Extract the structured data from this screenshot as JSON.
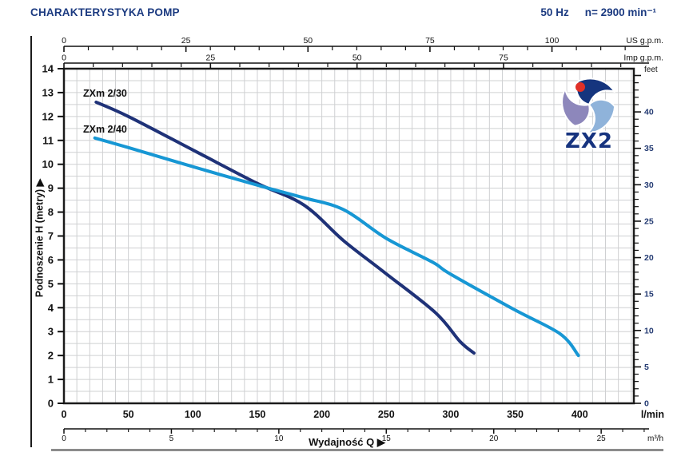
{
  "header": {
    "title": "CHARAKTERYSTYKA POMP",
    "frequency": "50 Hz",
    "speed": "n= 2900 min⁻¹"
  },
  "logo": {
    "text": "ZX2"
  },
  "chart_data": {
    "type": "line",
    "title": "",
    "xlabel": "Wydajność Q  ▶",
    "ylabel": "Podnoszenie H  (metry)  ▶",
    "grid": true,
    "x_axis_bottom": {
      "unit": "l/min",
      "ticks": [
        0,
        50,
        100,
        150,
        200,
        250,
        300,
        350,
        400
      ],
      "minor_step": 10,
      "range": [
        0,
        442
      ]
    },
    "x_axis_bottom_secondary": {
      "unit": "m³/h",
      "ticks": [
        0,
        5,
        10,
        15,
        20,
        25
      ],
      "minor_step": 1,
      "lmin_per_unit": 16.667
    },
    "x_axis_top_primary": {
      "unit": "US g.p.m.",
      "ticks": [
        0,
        25,
        50,
        75,
        100
      ],
      "minor_step": 5,
      "lmin_per_unit": 3.785
    },
    "x_axis_top_secondary": {
      "unit": "Imp g.p.m.",
      "ticks": [
        0,
        25,
        50,
        75
      ],
      "minor_step": 5,
      "lmin_per_unit": 4.546
    },
    "y_axis_left": {
      "unit": "metry",
      "ticks": [
        0,
        1,
        2,
        3,
        4,
        5,
        6,
        7,
        8,
        9,
        10,
        11,
        12,
        13,
        14
      ],
      "minor_grid_step": 0.5,
      "range": [
        0,
        14
      ]
    },
    "y_axis_right": {
      "unit": "feet",
      "ticks": [
        0,
        5,
        10,
        15,
        20,
        25,
        30,
        35,
        40
      ],
      "minor_step": 1,
      "m_per_unit": 0.3048
    },
    "series": [
      {
        "name": "ZXm 2/30",
        "color": "#1f3278",
        "points": [
          [
            25,
            12.6
          ],
          [
            50,
            12.0
          ],
          [
            100,
            10.6
          ],
          [
            150,
            9.2
          ],
          [
            186,
            8.3
          ],
          [
            217,
            6.8
          ],
          [
            248,
            5.5
          ],
          [
            288,
            3.8
          ],
          [
            307,
            2.6
          ],
          [
            318,
            2.1
          ]
        ]
      },
      {
        "name": "ZXm 2/40",
        "color": "#1797d4",
        "points": [
          [
            24,
            11.1
          ],
          [
            50,
            10.7
          ],
          [
            100,
            9.9
          ],
          [
            155,
            9.05
          ],
          [
            186,
            8.6
          ],
          [
            217,
            8.1
          ],
          [
            250,
            6.9
          ],
          [
            286,
            5.9
          ],
          [
            300,
            5.4
          ],
          [
            350,
            3.9
          ],
          [
            385,
            2.9
          ],
          [
            399,
            2.0
          ]
        ]
      }
    ]
  },
  "colors": {
    "header_navy": "#1b3a80",
    "grid": "#cfd0d2",
    "border": "#1b1b1b",
    "feet_labels": "#233a72",
    "gray_rule": "#8c8c8c",
    "logo_navy": "#15357e",
    "logo_light_blue": "#8fb3da",
    "logo_purple": "#8d87bb",
    "logo_red": "#e03128"
  }
}
